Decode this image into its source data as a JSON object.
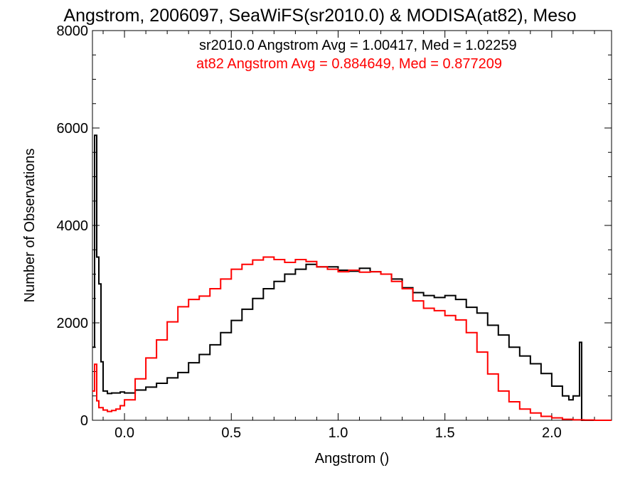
{
  "chart_data": {
    "type": "line",
    "title": "Angstrom, 2006097, SeaWiFS(sr2010.0) & MODISA(at82), Meso",
    "xlabel": "Angstrom ()",
    "ylabel": "Number of Observations",
    "xlim": [
      -0.15,
      2.28
    ],
    "ylim": [
      0,
      8000
    ],
    "x_ticks": [
      "0.0",
      "0.5",
      "1.0",
      "1.5",
      "2.0"
    ],
    "y_ticks": [
      "0",
      "2000",
      "4000",
      "6000",
      "8000"
    ],
    "grid": false,
    "step": true,
    "annotations": [
      {
        "text": "sr2010.0 Angstrom Avg = 1.00417, Med = 1.02259",
        "color": "#000000"
      },
      {
        "text": "at82 Angstrom Avg = 0.884649, Med = 0.877209",
        "color": "#ff0000"
      }
    ],
    "series": [
      {
        "color": "#000000",
        "x": [
          -0.15,
          -0.14,
          -0.13,
          -0.12,
          -0.11,
          -0.1,
          -0.08,
          -0.06,
          -0.04,
          -0.02,
          0.0,
          0.05,
          0.1,
          0.15,
          0.2,
          0.25,
          0.3,
          0.35,
          0.4,
          0.45,
          0.5,
          0.55,
          0.6,
          0.65,
          0.7,
          0.75,
          0.8,
          0.85,
          0.9,
          0.95,
          1.0,
          1.05,
          1.1,
          1.15,
          1.2,
          1.25,
          1.3,
          1.35,
          1.4,
          1.45,
          1.5,
          1.55,
          1.6,
          1.65,
          1.7,
          1.75,
          1.8,
          1.85,
          1.9,
          1.95,
          2.0,
          2.05,
          2.08,
          2.1,
          2.12,
          2.13,
          2.14,
          2.15,
          2.2,
          2.28
        ],
        "y": [
          1500,
          5850,
          3350,
          2800,
          1200,
          600,
          550,
          560,
          560,
          580,
          560,
          620,
          680,
          760,
          870,
          980,
          1180,
          1350,
          1550,
          1800,
          2050,
          2280,
          2500,
          2700,
          2850,
          3000,
          3100,
          3200,
          3150,
          3150,
          3080,
          3060,
          3120,
          3050,
          3000,
          2900,
          2720,
          2620,
          2560,
          2520,
          2560,
          2480,
          2320,
          2200,
          1950,
          1750,
          1500,
          1320,
          1160,
          960,
          700,
          500,
          420,
          500,
          500,
          1600,
          0,
          0,
          0,
          0
        ]
      },
      {
        "color": "#ff0000",
        "x": [
          -0.15,
          -0.14,
          -0.13,
          -0.12,
          -0.1,
          -0.08,
          -0.06,
          -0.04,
          -0.02,
          0.0,
          0.05,
          0.1,
          0.15,
          0.2,
          0.25,
          0.3,
          0.35,
          0.4,
          0.45,
          0.5,
          0.55,
          0.6,
          0.65,
          0.7,
          0.75,
          0.8,
          0.85,
          0.9,
          0.95,
          1.0,
          1.05,
          1.1,
          1.15,
          1.2,
          1.25,
          1.3,
          1.35,
          1.4,
          1.45,
          1.5,
          1.55,
          1.6,
          1.65,
          1.7,
          1.75,
          1.8,
          1.85,
          1.9,
          1.95,
          2.0,
          2.05,
          2.1,
          2.15,
          2.2,
          2.28
        ],
        "y": [
          600,
          1150,
          400,
          260,
          210,
          180,
          200,
          230,
          300,
          420,
          850,
          1280,
          1650,
          2020,
          2330,
          2480,
          2550,
          2700,
          2900,
          3100,
          3200,
          3290,
          3350,
          3300,
          3240,
          3300,
          3260,
          3150,
          3100,
          3050,
          3080,
          3040,
          3050,
          3000,
          2850,
          2700,
          2450,
          2300,
          2250,
          2150,
          2060,
          1800,
          1400,
          950,
          600,
          380,
          230,
          150,
          80,
          50,
          20,
          10,
          5,
          0,
          0
        ]
      }
    ]
  }
}
